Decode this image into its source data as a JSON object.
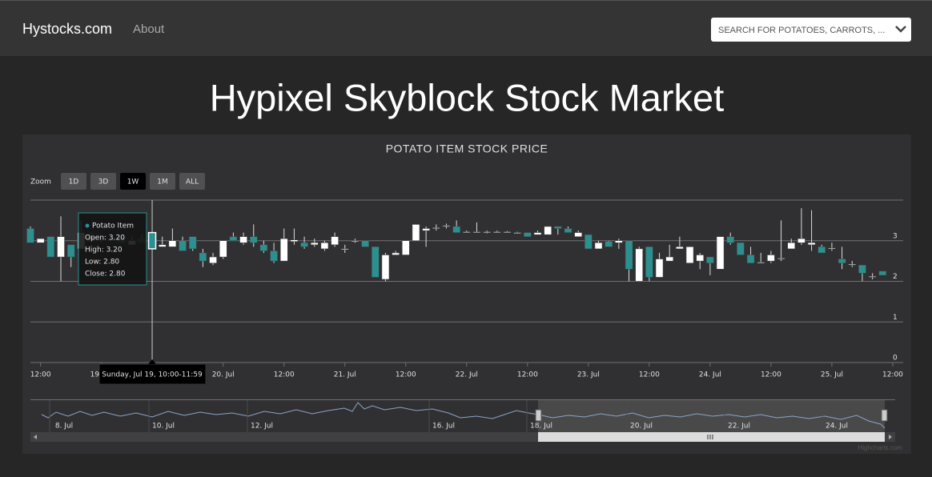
{
  "nav": {
    "brand": "Hystocks.com",
    "about": "About",
    "search_placeholder": "SEARCH FOR POTATOES, CARROTS, ..."
  },
  "heading": "Hypixel Skyblock Stock Market",
  "chart_data": {
    "type": "candlestick",
    "title": "POTATO ITEM STOCK PRICE",
    "zoom": {
      "label": "Zoom",
      "buttons": [
        "1D",
        "3D",
        "1W",
        "1M",
        "ALL"
      ],
      "selected": 2
    },
    "up_color": "#ffffff",
    "down_color": "#2b908f",
    "series": [
      {
        "name": "Potato Item",
        "open": [
          3.3,
          2.95,
          3.1,
          2.6,
          2.9,
          2.8,
          3.0,
          3.1,
          3.0,
          3.1,
          2.9,
          3.05,
          3.2,
          2.85,
          2.85,
          3.0,
          3.1,
          2.7,
          2.45,
          2.6,
          3.1,
          2.95,
          3.1,
          2.9,
          2.75,
          2.5,
          2.98,
          2.95,
          2.9,
          2.8,
          2.9,
          2.78,
          2.98,
          3.0,
          2.85,
          2.05,
          2.65,
          2.65,
          3.0,
          3.25,
          3.3,
          3.35,
          3.35,
          3.2,
          3.2,
          3.2,
          3.2,
          3.2,
          3.18,
          3.2,
          3.15,
          3.15,
          3.35,
          3.3,
          3.1,
          3.15,
          2.8,
          2.98,
          2.95,
          3.0,
          2.0,
          2.85,
          2.1,
          2.5,
          2.8,
          2.45,
          2.5,
          2.6,
          2.3,
          3.1,
          2.95,
          2.65,
          2.45,
          2.5,
          2.55,
          2.8,
          2.95,
          2.9,
          2.85,
          2.8,
          2.55,
          2.4,
          2.4,
          2.1,
          2.25
        ],
        "high": [
          3.35,
          3.05,
          3.1,
          3.6,
          2.9,
          3.5,
          3.2,
          3.1,
          3.1,
          3.1,
          3.1,
          3.15,
          3.2,
          3.1,
          3.3,
          3.1,
          3.1,
          2.8,
          2.7,
          3.0,
          3.2,
          3.2,
          3.4,
          3.0,
          2.95,
          3.3,
          3.3,
          3.1,
          3.05,
          3.0,
          3.2,
          2.9,
          3.05,
          3.0,
          2.85,
          2.7,
          2.75,
          3.0,
          3.4,
          3.35,
          3.4,
          3.42,
          3.5,
          3.25,
          3.45,
          3.25,
          3.25,
          3.24,
          3.22,
          3.2,
          3.25,
          3.35,
          3.35,
          3.35,
          3.25,
          3.15,
          3.0,
          3.0,
          3.05,
          3.0,
          2.85,
          2.85,
          2.7,
          2.9,
          3.1,
          2.85,
          2.7,
          2.6,
          3.1,
          3.2,
          2.95,
          2.85,
          2.7,
          2.75,
          3.5,
          3.05,
          3.8,
          3.75,
          2.9,
          2.95,
          2.85,
          2.5,
          2.4,
          2.2,
          2.25
        ],
        "low": [
          2.95,
          2.95,
          2.6,
          2.0,
          2.35,
          2.8,
          3.0,
          2.95,
          3.0,
          2.95,
          2.9,
          2.95,
          2.8,
          2.85,
          2.85,
          2.75,
          2.75,
          2.35,
          2.4,
          2.55,
          3.0,
          2.9,
          2.85,
          2.7,
          2.45,
          2.5,
          2.9,
          2.8,
          2.85,
          2.75,
          2.85,
          2.7,
          2.95,
          2.85,
          2.1,
          2.0,
          2.65,
          2.65,
          3.0,
          2.85,
          3.25,
          3.3,
          3.2,
          3.2,
          3.2,
          3.18,
          3.2,
          3.2,
          3.18,
          3.1,
          3.15,
          3.15,
          3.15,
          3.2,
          3.1,
          2.8,
          2.8,
          2.85,
          2.8,
          2.0,
          2.0,
          2.0,
          2.1,
          2.5,
          2.8,
          2.45,
          2.3,
          2.15,
          2.3,
          2.9,
          2.65,
          2.45,
          2.45,
          2.45,
          2.5,
          2.8,
          2.9,
          2.75,
          2.7,
          2.75,
          2.3,
          2.35,
          2.0,
          2.05,
          2.15
        ],
        "close": [
          2.95,
          3.05,
          2.6,
          3.1,
          2.6,
          3.2,
          3.1,
          3.0,
          3.05,
          2.95,
          3.0,
          2.95,
          2.8,
          2.9,
          3.0,
          2.75,
          2.8,
          2.5,
          2.6,
          3.0,
          3.0,
          3.1,
          2.95,
          2.75,
          2.5,
          3.05,
          3.02,
          2.85,
          2.95,
          2.95,
          3.1,
          2.8,
          3.0,
          2.85,
          2.1,
          2.65,
          2.7,
          3.0,
          3.4,
          3.3,
          3.32,
          3.37,
          3.2,
          3.22,
          3.22,
          3.22,
          3.22,
          3.22,
          3.2,
          3.1,
          3.2,
          3.35,
          3.3,
          3.2,
          3.2,
          2.8,
          2.95,
          2.85,
          3.0,
          2.3,
          2.8,
          2.1,
          2.55,
          2.6,
          2.85,
          2.85,
          2.65,
          2.45,
          3.1,
          2.95,
          2.65,
          2.45,
          2.47,
          2.65,
          2.57,
          2.95,
          3.05,
          2.95,
          2.7,
          2.82,
          2.45,
          2.42,
          2.2,
          2.12,
          2.15
        ]
      }
    ],
    "ylim": [
      0,
      4
    ],
    "yticks": [
      0,
      1,
      2,
      3
    ],
    "grid": true,
    "xticks": [
      {
        "value": 1,
        "label": "12:00"
      },
      {
        "value": 7,
        "label": "19. Jul"
      },
      {
        "value": 19,
        "label": "20. Jul"
      },
      {
        "value": 25,
        "label": "12:00"
      },
      {
        "value": 31,
        "label": "21. Jul"
      },
      {
        "value": 37,
        "label": "12:00"
      },
      {
        "value": 43,
        "label": "22. Jul"
      },
      {
        "value": 49,
        "label": "12:00"
      },
      {
        "value": 55,
        "label": "23. Jul"
      },
      {
        "value": 61,
        "label": "12:00"
      },
      {
        "value": 67,
        "label": "24. Jul"
      },
      {
        "value": 73,
        "label": "12:00"
      },
      {
        "value": 79,
        "label": "25. Jul"
      },
      {
        "value": 85,
        "label": "12:00"
      }
    ],
    "tooltip": {
      "index": 12,
      "series_name": "Potato Item",
      "rows": [
        "Open: 3.20",
        "High: 3.20",
        "Low: 2.80",
        "Close: 2.80"
      ],
      "date": "Sunday, Jul 19, 10:00-11:59"
    },
    "navigator_labels": [
      "8. Jul",
      "10. Jul",
      "12. Jul",
      "16. Jul",
      "18. Jul",
      "20. Jul",
      "22. Jul",
      "24. Jul"
    ],
    "credits": "Highcharts.com"
  }
}
